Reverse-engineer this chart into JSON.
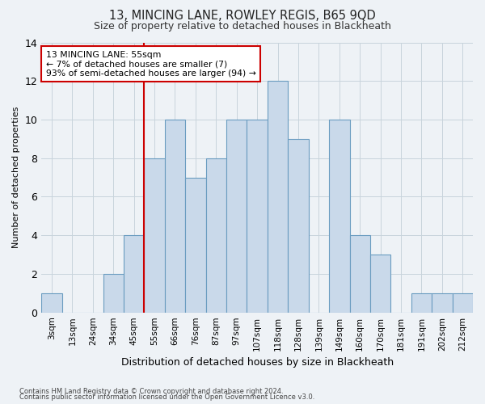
{
  "title1": "13, MINCING LANE, ROWLEY REGIS, B65 9QD",
  "title2": "Size of property relative to detached houses in Blackheath",
  "xlabel": "Distribution of detached houses by size in Blackheath",
  "ylabel": "Number of detached properties",
  "categories": [
    "3sqm",
    "13sqm",
    "24sqm",
    "34sqm",
    "45sqm",
    "55sqm",
    "66sqm",
    "76sqm",
    "87sqm",
    "97sqm",
    "107sqm",
    "118sqm",
    "128sqm",
    "139sqm",
    "149sqm",
    "160sqm",
    "170sqm",
    "181sqm",
    "191sqm",
    "202sqm",
    "212sqm"
  ],
  "values": [
    1,
    0,
    0,
    2,
    4,
    8,
    10,
    7,
    8,
    10,
    10,
    12,
    9,
    0,
    10,
    4,
    3,
    0,
    1,
    1,
    1
  ],
  "bar_color": "#c9d9ea",
  "bar_edge_color": "#6a9cc0",
  "highlight_bin": 5,
  "highlight_color": "#cc0000",
  "annotation_text": "13 MINCING LANE: 55sqm\n← 7% of detached houses are smaller (7)\n93% of semi-detached houses are larger (94) →",
  "annotation_box_color": "#ffffff",
  "annotation_box_edge": "#cc0000",
  "ylim": [
    0,
    14
  ],
  "yticks": [
    0,
    2,
    4,
    6,
    8,
    10,
    12,
    14
  ],
  "grid_color": "#c8d4dc",
  "footer1": "Contains HM Land Registry data © Crown copyright and database right 2024.",
  "footer2": "Contains public sector information licensed under the Open Government Licence v3.0.",
  "bg_color": "#eef2f6",
  "title1_fontsize": 10.5,
  "title2_fontsize": 9,
  "ylabel_fontsize": 8,
  "xlabel_fontsize": 9
}
